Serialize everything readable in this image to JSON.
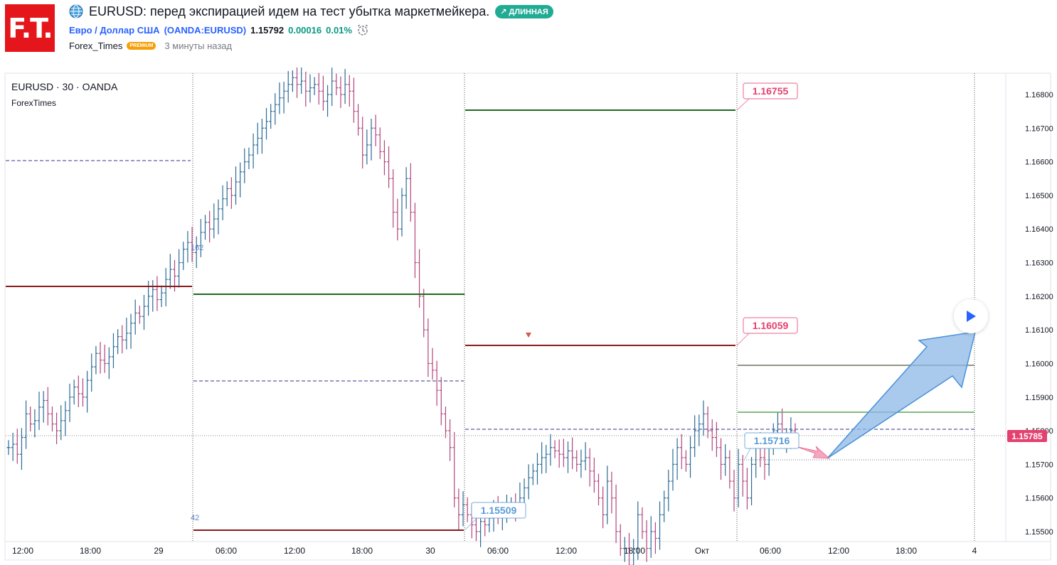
{
  "logo": {
    "text": "F.T."
  },
  "idea": {
    "title": "EURUSD: перед экспирацией идем на тест убытка маркетмейкера.",
    "badge": "↗ ДЛИННАЯ"
  },
  "symbol": {
    "name": "Евро / Доллар США",
    "ticker": "(OANDA:EURUSD)",
    "price": "1.15792",
    "change": "0.00016",
    "change_pct": "0.01%"
  },
  "author": {
    "name": "Forex_Times",
    "badge": "PREMIUM",
    "time": "3 минуты назад"
  },
  "legend": {
    "main": "EURUSD · 30 · OANDA",
    "sub": "ForexTimes"
  },
  "colors": {
    "up": "#2a6b96",
    "down": "#b3457c",
    "green": "#1e6b1e",
    "red": "#8b1a1a",
    "dash": "#5a5aa8",
    "price_tag": "#e4416f"
  },
  "chart_data": {
    "type": "line",
    "ylim": [
      1.15465,
      1.16865
    ],
    "y_ticks": [
      "1.16800",
      "1.16700",
      "1.16600",
      "1.16500",
      "1.16400",
      "1.16300",
      "1.16200",
      "1.16100",
      "1.16000",
      "1.15900",
      "1.15800",
      "1.15700",
      "1.15600",
      "1.15500"
    ],
    "x_ticks": [
      "12:00",
      "18:00",
      "29",
      "06:00",
      "12:00",
      "18:00",
      "30",
      "06:00",
      "12:00",
      "18:00",
      "Окт",
      "06:00",
      "12:00",
      "18:00",
      "4"
    ],
    "last_price": "1.15785",
    "level_labels": [
      {
        "text": "1.16755",
        "price": 1.16755,
        "color": "#e4416f"
      },
      {
        "text": "1.16059",
        "price": 1.16059,
        "color": "#e4416f"
      },
      {
        "text": "1.15509",
        "price": 1.15509,
        "color": "#5b9bd5"
      },
      {
        "text": "1.15716",
        "price": 1.15716,
        "color": "#5b9bd5"
      }
    ],
    "fib_labels": [
      "162",
      "42"
    ],
    "price_path": [
      [
        1.1575,
        1.1576,
        1.1573,
        1.1578,
        1.1585,
        1.1582,
        1.1583,
        1.1587,
        1.1589,
        1.1585,
        1.1582,
        1.158,
        1.1583,
        1.1586,
        1.159,
        1.1593,
        1.1591,
        1.159,
        1.1595,
        1.1599,
        1.1603,
        1.1601,
        1.16,
        1.1602,
        1.1605,
        1.1608,
        1.1607,
        1.1609,
        1.1612,
        1.1615,
        1.1614,
        1.1617,
        1.162,
        1.1622,
        1.1619,
        1.1621,
        1.1625,
        1.1628,
        1.1626,
        1.163,
        1.1634,
        1.1636,
        1.1633,
        1.1635,
        1.1639,
        1.1642,
        1.164,
        1.1643,
        1.1646,
        1.1649,
        1.1652,
        1.165,
        1.1654,
        1.1657,
        1.166,
        1.1662,
        1.1665,
        1.1667,
        1.167,
        1.1672,
        1.1675,
        1.1677,
        1.1679,
        1.1681,
        1.1683,
        1.1685,
        1.1683,
        1.1684,
        1.1681,
        1.1682
      ],
      [
        1.1683,
        1.1681,
        1.1678,
        1.168,
        1.1684,
        1.1682,
        1.168,
        1.1683,
        1.1681,
        1.1675,
        1.167,
        1.1662,
        1.1665,
        1.167,
        1.1668,
        1.1663,
        1.166,
        1.1655,
        1.1645,
        1.164,
        1.165,
        1.1655,
        1.1645,
        1.163,
        1.162,
        1.161,
        1.16,
        1.1598,
        1.1592,
        1.1585,
        1.158,
        1.1575,
        1.156,
        1.1555,
        1.1558,
        1.1555,
        1.1552,
        1.155,
        1.1553,
        1.1552,
        1.1554,
        1.1556,
        1.1555,
        1.1556,
        1.1557,
        1.1558,
        1.1557,
        1.156
      ]
    ],
    "price_path_tail": [
      1.1563,
      1.1566,
      1.1568,
      1.157,
      1.1572,
      1.1573,
      1.1575,
      1.1574,
      1.1573,
      1.1572,
      1.1574,
      1.1572,
      1.157,
      1.1571,
      1.1572,
      1.1568,
      1.1565,
      1.156,
      1.1555,
      1.1565,
      1.156,
      1.155,
      1.1545,
      1.1545,
      1.154,
      1.1545,
      1.1555,
      1.155,
      1.1545,
      1.155,
      1.1548,
      1.1555,
      1.156,
      1.1565,
      1.157,
      1.1575,
      1.1572,
      1.157,
      1.1575,
      1.158,
      1.1582,
      1.1585,
      1.158,
      1.1578,
      1.1575,
      1.157,
      1.1572,
      1.1565,
      1.156,
      1.157,
      1.1565,
      1.156,
      1.157,
      1.1575,
      1.1572,
      1.157,
      1.1575,
      1.158,
      1.1582,
      1.1578,
      1.1578,
      1.158,
      1.1578
    ]
  }
}
